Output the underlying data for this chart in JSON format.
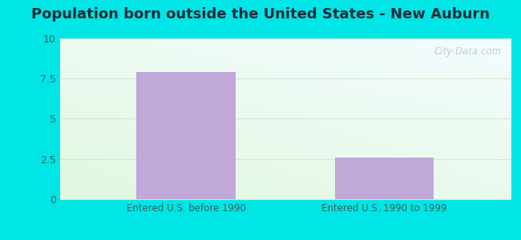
{
  "title": "Population born outside the United States - New Auburn",
  "categories": [
    "Entered U.S. before 1990",
    "Entered U.S. 1990 to 1999"
  ],
  "values": [
    7.9,
    2.6
  ],
  "bar_color": "#c0a8d8",
  "ylim": [
    0,
    10
  ],
  "yticks": [
    0,
    2.5,
    5,
    7.5,
    10
  ],
  "ytick_labels": [
    "0",
    "2.5",
    "5",
    "7.5",
    "10"
  ],
  "title_fontsize": 13,
  "title_fontweight": "bold",
  "title_color": "#1a2a3a",
  "tick_color": "#336666",
  "label_color": "#336666",
  "outer_bg": "#00e5e5",
  "plot_bg_topleft": "#e8f8f0",
  "plot_bg_topright": "#ddf0f8",
  "plot_bg_bottom": "#e0f5e0",
  "grid_color": "#d0e8d0",
  "watermark": "City-Data.com",
  "watermark_color": "#aacccc"
}
